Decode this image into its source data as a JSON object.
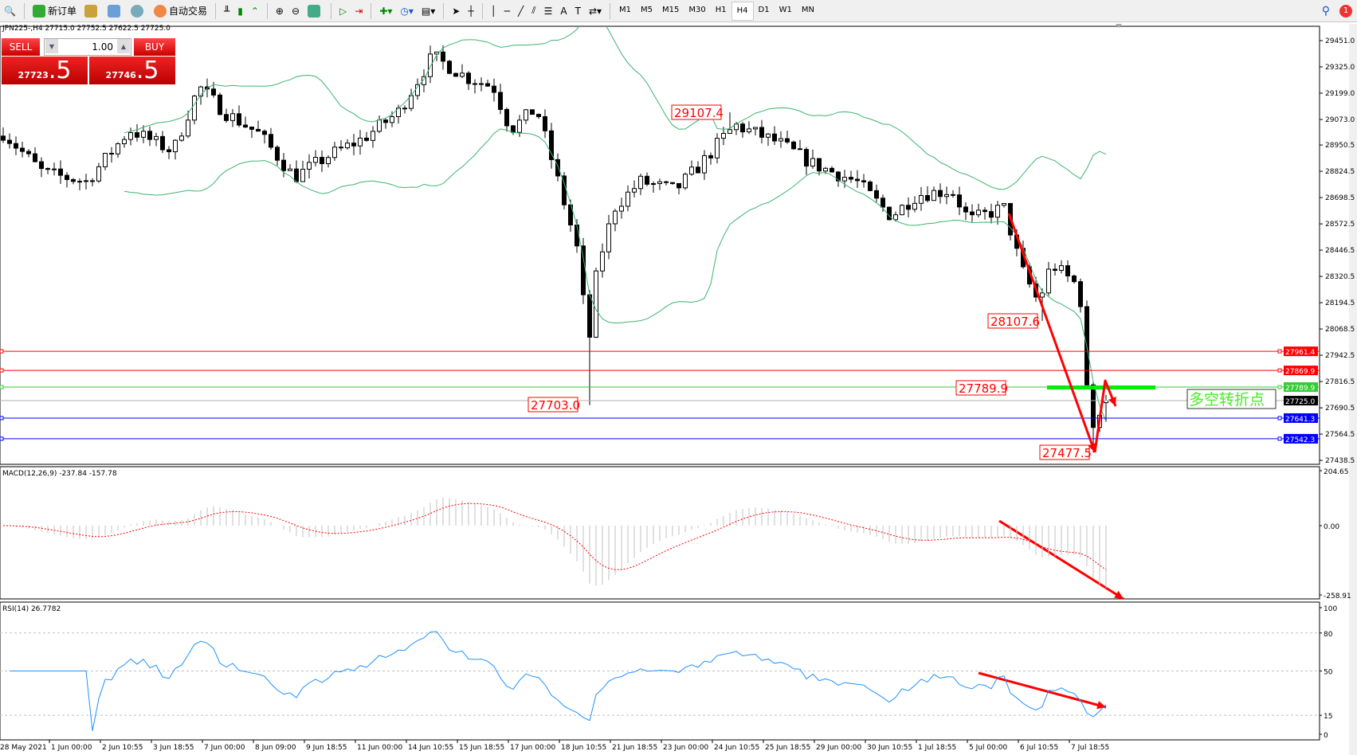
{
  "toolbar": {
    "new_order": "新订单",
    "auto_trading": "自动交易",
    "timeframes": [
      "M1",
      "M5",
      "M15",
      "M30",
      "H1",
      "H4",
      "D1",
      "W1",
      "MN"
    ],
    "active_timeframe": "H4",
    "notification_count": "1"
  },
  "chart": {
    "header": "JPN225-,H4  27715.0 27752.5 27622.5 27725.0",
    "symbol": "JPN225-",
    "timeframe": "H4",
    "ohlc": {
      "open": 27715.0,
      "high": 27752.5,
      "low": 27622.5,
      "close": 27725.0
    },
    "price_ticks": [
      "29451.0",
      "29325.0",
      "29199.0",
      "29073.0",
      "28950.5",
      "28824.5",
      "28698.5",
      "28572.5",
      "28446.5",
      "28320.5",
      "28194.5",
      "28068.5",
      "27942.5",
      "27816.5",
      "27690.5",
      "27564.5",
      "27438.5"
    ],
    "level_lines": [
      {
        "value": "27961.4",
        "color": "#ff0000"
      },
      {
        "value": "27869.9",
        "color": "#ff0000"
      },
      {
        "value": "27789.9",
        "color": "#32cd32"
      },
      {
        "value": "27725.0",
        "color": "#000000"
      },
      {
        "value": "27641.3",
        "color": "#0000ff"
      },
      {
        "value": "27542.3",
        "color": "#0000ff"
      }
    ],
    "price_labels": [
      "29107.4",
      "27703.0",
      "28107.6",
      "27789.9",
      "27477.5"
    ],
    "annotation_text": "多空转折点",
    "time_labels": [
      "28 May 2021",
      "1 Jun 00:00",
      "2 Jun 10:55",
      "3 Jun 18:55",
      "7 Jun 00:00",
      "8 Jun 09:00",
      "9 Jun 18:55",
      "11 Jun 00:00",
      "14 Jun 10:55",
      "15 Jun 18:55",
      "17 Jun 00:00",
      "18 Jun 10:55",
      "21 Jun 18:55",
      "23 Jun 00:00",
      "24 Jun 10:55",
      "25 Jun 18:55",
      "29 Jun 00:00",
      "30 Jun 10:55",
      "1 Jul 18:55",
      "5 Jul 00:00",
      "6 Jul 10:55",
      "7 Jul 18:55"
    ],
    "colors": {
      "bands": "#3cb371",
      "arrow": "#ff0000",
      "rsi": "#1e90ff",
      "macd_signal": "#ff0000",
      "macd_hist": "#c0c0c0"
    }
  },
  "trade_panel": {
    "sell_label": "SELL",
    "buy_label": "BUY",
    "lot": "1.00",
    "sell_main": "27723",
    "sell_big": ".5",
    "buy_main": "27746",
    "buy_big": ".5"
  },
  "macd": {
    "label": "MACD(12,26,9) -237.84 -157.78",
    "ticks": [
      "204.65",
      "0.00",
      "-258.91"
    ]
  },
  "rsi": {
    "label": "RSI(14) 26.7782",
    "ticks": [
      "100",
      "80",
      "50",
      "15",
      "0"
    ]
  }
}
